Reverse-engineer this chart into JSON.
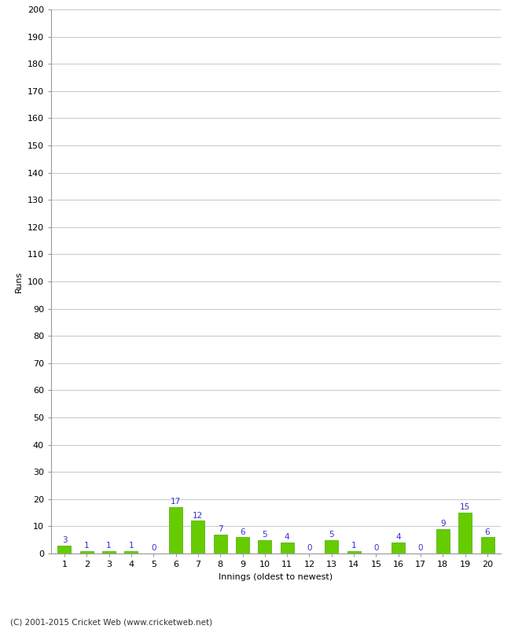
{
  "xlabel": "Innings (oldest to newest)",
  "ylabel": "Runs",
  "categories": [
    1,
    2,
    3,
    4,
    5,
    6,
    7,
    8,
    9,
    10,
    11,
    12,
    13,
    14,
    15,
    16,
    17,
    18,
    19,
    20
  ],
  "values": [
    3,
    1,
    1,
    1,
    0,
    17,
    12,
    7,
    6,
    5,
    4,
    0,
    5,
    1,
    0,
    4,
    0,
    9,
    15,
    6
  ],
  "bar_color": "#66cc00",
  "bar_edge_color": "#44aa00",
  "label_color": "#3333cc",
  "ylim": [
    0,
    200
  ],
  "yticks": [
    0,
    10,
    20,
    30,
    40,
    50,
    60,
    70,
    80,
    90,
    100,
    110,
    120,
    130,
    140,
    150,
    160,
    170,
    180,
    190,
    200
  ],
  "background_color": "#ffffff",
  "grid_color": "#cccccc",
  "footer_text": "(C) 2001-2015 Cricket Web (www.cricketweb.net)",
  "label_fontsize": 7.5,
  "axis_fontsize": 8,
  "ylabel_fontsize": 8,
  "xlabel_fontsize": 8,
  "footer_fontsize": 7.5
}
